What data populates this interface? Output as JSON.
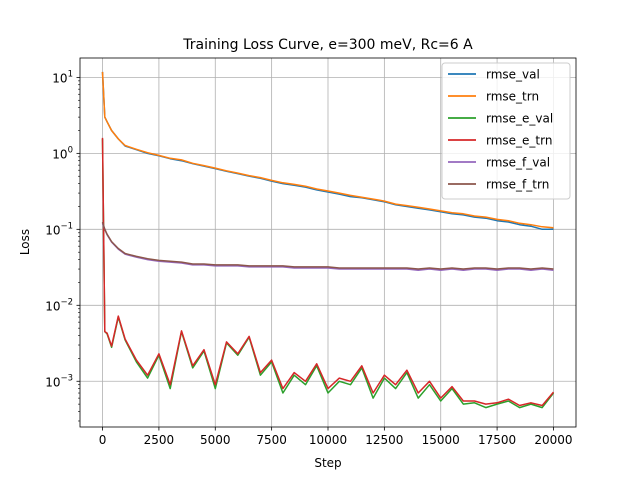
{
  "chart_data": {
    "type": "line",
    "title": "Training Loss Curve, e=300 meV, Rc=6 A",
    "xlabel": "Step",
    "ylabel": "Loss",
    "xlim": [
      -1000,
      21000
    ],
    "ylim": [
      0.00025,
      18
    ],
    "yscale": "log",
    "grid": true,
    "legend_position": "top-right",
    "x_ticks": [
      0,
      2500,
      5000,
      7500,
      10000,
      12500,
      15000,
      17500,
      20000
    ],
    "x_tick_labels": [
      "0",
      "2500",
      "5000",
      "7500",
      "10000",
      "12500",
      "15000",
      "17500",
      "20000"
    ],
    "y_ticks": [
      {
        "value": 0.001,
        "base": "10",
        "exp": "−3"
      },
      {
        "value": 0.01,
        "base": "10",
        "exp": "−2"
      },
      {
        "value": 0.1,
        "base": "10",
        "exp": "−1"
      },
      {
        "value": 1,
        "base": "10",
        "exp": "0"
      },
      {
        "value": 10,
        "base": "10",
        "exp": "1"
      }
    ],
    "x": [
      0,
      100,
      200,
      400,
      700,
      1000,
      1500,
      2000,
      2500,
      3000,
      3500,
      4000,
      4500,
      5000,
      5500,
      6000,
      6500,
      7000,
      7500,
      8000,
      8500,
      9000,
      9500,
      10000,
      10500,
      11000,
      11500,
      12000,
      12500,
      13000,
      13500,
      14000,
      14500,
      15000,
      15500,
      16000,
      16500,
      17000,
      17500,
      18000,
      18500,
      19000,
      19500,
      20000
    ],
    "series": [
      {
        "name": "rmse_val",
        "color": "#1f77b4",
        "values": [
          11.8,
          3.0,
          2.6,
          2.0,
          1.55,
          1.25,
          1.12,
          1.0,
          0.93,
          0.85,
          0.8,
          0.73,
          0.68,
          0.63,
          0.58,
          0.54,
          0.5,
          0.47,
          0.43,
          0.4,
          0.38,
          0.36,
          0.33,
          0.31,
          0.29,
          0.27,
          0.26,
          0.245,
          0.23,
          0.21,
          0.2,
          0.19,
          0.18,
          0.17,
          0.16,
          0.155,
          0.145,
          0.14,
          0.13,
          0.125,
          0.115,
          0.11,
          0.1,
          0.1
        ]
      },
      {
        "name": "rmse_trn",
        "color": "#ff7f0e",
        "values": [
          11.8,
          3.0,
          2.6,
          2.0,
          1.55,
          1.27,
          1.13,
          1.02,
          0.94,
          0.86,
          0.82,
          0.74,
          0.69,
          0.64,
          0.59,
          0.55,
          0.51,
          0.48,
          0.44,
          0.41,
          0.39,
          0.37,
          0.34,
          0.32,
          0.3,
          0.28,
          0.265,
          0.25,
          0.235,
          0.215,
          0.205,
          0.195,
          0.185,
          0.175,
          0.165,
          0.16,
          0.15,
          0.145,
          0.135,
          0.13,
          0.12,
          0.115,
          0.108,
          0.105
        ]
      },
      {
        "name": "rmse_e_val",
        "color": "#2ca02c",
        "values": [
          1.55,
          0.0045,
          0.0042,
          0.0028,
          0.007,
          0.0035,
          0.0018,
          0.0011,
          0.0022,
          0.0008,
          0.0045,
          0.0015,
          0.0025,
          0.0008,
          0.0032,
          0.0022,
          0.0038,
          0.0012,
          0.0018,
          0.0007,
          0.0012,
          0.0009,
          0.0016,
          0.0007,
          0.001,
          0.0009,
          0.0015,
          0.0006,
          0.0011,
          0.0008,
          0.0013,
          0.0006,
          0.0009,
          0.00055,
          0.0008,
          0.0005,
          0.00052,
          0.00045,
          0.0005,
          0.00055,
          0.00045,
          0.0005,
          0.00045,
          0.0007
        ]
      },
      {
        "name": "rmse_e_trn",
        "color": "#d62728",
        "values": [
          1.6,
          0.0045,
          0.0043,
          0.0029,
          0.0072,
          0.0036,
          0.0019,
          0.0012,
          0.0023,
          0.0009,
          0.0046,
          0.0016,
          0.0026,
          0.0009,
          0.0033,
          0.0023,
          0.0039,
          0.0013,
          0.0019,
          0.0008,
          0.0013,
          0.001,
          0.0017,
          0.0008,
          0.0011,
          0.001,
          0.0016,
          0.0007,
          0.0012,
          0.0009,
          0.0014,
          0.0007,
          0.001,
          0.0006,
          0.00085,
          0.00055,
          0.00055,
          0.0005,
          0.00052,
          0.00058,
          0.00048,
          0.00052,
          0.00048,
          0.00072
        ]
      },
      {
        "name": "rmse_f_val",
        "color": "#9467bd",
        "values": [
          0.12,
          0.1,
          0.085,
          0.068,
          0.055,
          0.047,
          0.043,
          0.04,
          0.038,
          0.037,
          0.036,
          0.034,
          0.034,
          0.033,
          0.033,
          0.033,
          0.032,
          0.032,
          0.032,
          0.032,
          0.031,
          0.031,
          0.031,
          0.031,
          0.03,
          0.03,
          0.03,
          0.03,
          0.03,
          0.03,
          0.03,
          0.029,
          0.03,
          0.029,
          0.03,
          0.029,
          0.03,
          0.03,
          0.029,
          0.03,
          0.03,
          0.029,
          0.03,
          0.029
        ]
      },
      {
        "name": "rmse_f_trn",
        "color": "#8c564b",
        "values": [
          0.125,
          0.1,
          0.086,
          0.069,
          0.056,
          0.048,
          0.044,
          0.041,
          0.039,
          0.038,
          0.037,
          0.035,
          0.035,
          0.034,
          0.034,
          0.034,
          0.033,
          0.033,
          0.033,
          0.033,
          0.032,
          0.032,
          0.032,
          0.032,
          0.031,
          0.031,
          0.031,
          0.031,
          0.031,
          0.031,
          0.031,
          0.03,
          0.031,
          0.03,
          0.031,
          0.03,
          0.031,
          0.031,
          0.03,
          0.031,
          0.031,
          0.03,
          0.031,
          0.03
        ]
      }
    ]
  }
}
